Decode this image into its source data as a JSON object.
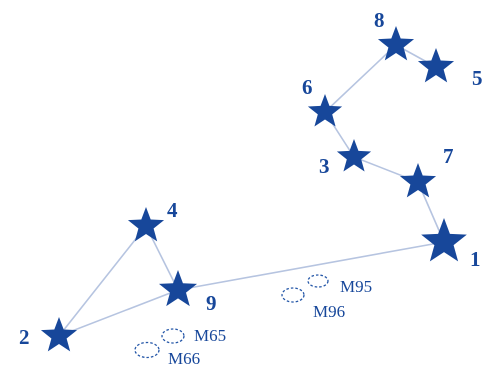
{
  "colors": {
    "star": "#17479a",
    "line": "#b6c4e0",
    "label": "#17479a",
    "galaxy_outline": "#2557a8",
    "background": "#ffffff"
  },
  "stars": [
    {
      "id": "1",
      "label": "1",
      "icon": "star-icon"
    },
    {
      "id": "2",
      "label": "2",
      "icon": "star-icon"
    },
    {
      "id": "3",
      "label": "3",
      "icon": "star-icon"
    },
    {
      "id": "4",
      "label": "4",
      "icon": "star-icon"
    },
    {
      "id": "5",
      "label": "5",
      "icon": "star-icon"
    },
    {
      "id": "6",
      "label": "6",
      "icon": "star-icon"
    },
    {
      "id": "7",
      "label": "7",
      "icon": "star-icon"
    },
    {
      "id": "8",
      "label": "8",
      "icon": "star-icon"
    },
    {
      "id": "9",
      "label": "9",
      "icon": "star-icon"
    }
  ],
  "connections": [
    [
      "2",
      "4"
    ],
    [
      "4",
      "9"
    ],
    [
      "2",
      "9"
    ],
    [
      "9",
      "1"
    ],
    [
      "1",
      "7"
    ],
    [
      "7",
      "3"
    ],
    [
      "3",
      "6"
    ],
    [
      "6",
      "8"
    ],
    [
      "8",
      "5"
    ]
  ],
  "galaxies": [
    {
      "id": "M95",
      "label": "M95",
      "icon": "dashed-ellipse-icon"
    },
    {
      "id": "M96",
      "label": "M96",
      "icon": "dashed-ellipse-icon"
    },
    {
      "id": "M65",
      "label": "M65",
      "icon": "dashed-ellipse-icon"
    },
    {
      "id": "M66",
      "label": "M66",
      "icon": "dashed-ellipse-icon"
    }
  ]
}
